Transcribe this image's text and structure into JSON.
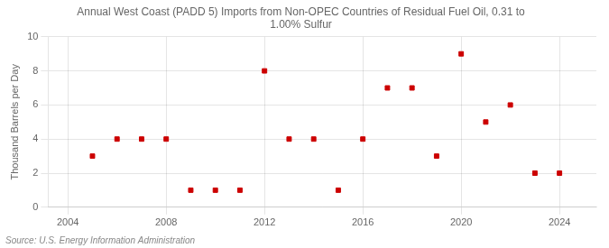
{
  "chart_data": {
    "type": "scatter",
    "title": "Annual West Coast (PADD 5) Imports from Non-OPEC Countries of Residual Fuel Oil, 0.31 to\n1.00% Sulfur",
    "y_label": "Thousand Barrels per Day",
    "annotations": [
      "Source: U.S. Energy Information Administration"
    ],
    "x": [
      2005,
      2006,
      2007,
      2008,
      2009,
      2010,
      2011,
      2012,
      2013,
      2014,
      2015,
      2016,
      2017,
      2018,
      2019,
      2020,
      2021,
      2022,
      2023,
      2024
    ],
    "values": [
      3,
      4,
      4,
      4,
      1,
      1,
      1,
      8,
      4,
      4,
      1,
      4,
      7,
      7,
      3,
      9,
      5,
      6,
      2,
      2
    ],
    "color": "#cc0000",
    "marker": "square",
    "xlim": [
      2003.2,
      2025.5
    ],
    "ylim": [
      0,
      10
    ],
    "xticks": [
      2004,
      2008,
      2012,
      2016,
      2020,
      2024
    ],
    "yticks": [
      0,
      2,
      4,
      6,
      8,
      10
    ],
    "grid": true
  }
}
